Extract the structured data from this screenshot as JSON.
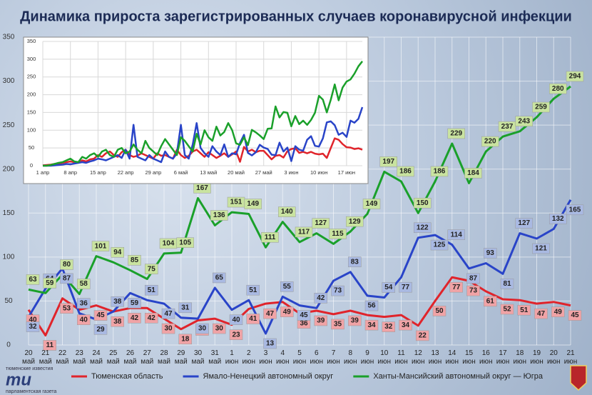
{
  "chart_data": [
    {
      "type": "line",
      "title": "Динамика прироста зарегистрированных случаев коронавирусной инфекции",
      "categories": [
        "20 май",
        "21 май",
        "22 май",
        "23 май",
        "24 май",
        "25 май",
        "26 май",
        "27 май",
        "28 май",
        "29 май",
        "30 май",
        "31 май",
        "1 июн",
        "2 июн",
        "3 июн",
        "4 июн",
        "5 июн",
        "6 июн",
        "7 июн",
        "8 июн",
        "9 июн",
        "10 июн",
        "11 июн",
        "12 июн",
        "13 июн",
        "14 июн",
        "15 июн",
        "16 июн",
        "17 июн",
        "18 июн",
        "19 июн",
        "20 июн",
        "21 июн"
      ],
      "series": [
        {
          "name": "Тюменская область",
          "color": "#e0242b",
          "label_color": "#f0a3a6",
          "values": [
            40,
            11,
            53,
            40,
            45,
            38,
            42,
            42,
            30,
            18,
            28,
            30,
            23,
            41,
            47,
            49,
            36,
            39,
            35,
            39,
            34,
            32,
            34,
            22,
            50,
            77,
            73,
            61,
            52,
            51,
            47,
            49,
            45
          ]
        },
        {
          "name": "Ямало-Ненецкий автономный округ",
          "color": "#2944c8",
          "label_color": "#a9b9e2",
          "values": [
            32,
            64,
            87,
            36,
            29,
            38,
            59,
            51,
            47,
            31,
            30,
            65,
            40,
            51,
            13,
            55,
            45,
            42,
            73,
            83,
            56,
            54,
            77,
            122,
            125,
            114,
            87,
            93,
            81,
            127,
            121,
            132,
            165
          ]
        },
        {
          "name": "Ханты-Мансийский автономный округ — Югра",
          "color": "#1aa02a",
          "label_color": "#c9e3a0",
          "values": [
            63,
            59,
            80,
            58,
            101,
            94,
            85,
            75,
            104,
            105,
            167,
            136,
            151,
            149,
            111,
            140,
            117,
            127,
            115,
            129,
            149,
            197,
            186,
            150,
            186,
            229,
            184,
            220,
            237,
            243,
            259,
            280,
            294
          ]
        }
      ],
      "ylim": [
        0,
        350
      ],
      "yticks": [
        0,
        50,
        100,
        150,
        200,
        250,
        300,
        350
      ],
      "grid": true,
      "legend": "bottom",
      "data_labels": true,
      "logo": {
        "top": "тюменские известия",
        "mark": "ти",
        "bottom": "парламентская газета"
      }
    },
    {
      "type": "line",
      "categories": [
        "1 апр",
        null,
        null,
        null,
        null,
        null,
        null,
        "8 апр",
        null,
        null,
        null,
        null,
        null,
        null,
        "15 апр",
        null,
        null,
        null,
        null,
        null,
        null,
        "22 апр",
        null,
        null,
        null,
        null,
        null,
        null,
        "29 апр",
        null,
        null,
        null,
        null,
        null,
        null,
        "6 май",
        null,
        null,
        null,
        null,
        null,
        null,
        "13 май",
        null,
        null,
        null,
        null,
        null,
        null,
        "20 май",
        null,
        null,
        null,
        null,
        null,
        null,
        "27 май",
        null,
        null,
        null,
        null,
        null,
        null,
        "3 июн",
        null,
        null,
        null,
        null,
        null,
        null,
        "10 июн",
        null,
        null,
        null,
        null,
        null,
        null,
        "17 июн",
        null,
        null,
        null,
        null
      ],
      "series": [
        {
          "name": "Тюменская область",
          "color": "#e0242b",
          "values": [
            1,
            2,
            3,
            5,
            6,
            8,
            10,
            12,
            10,
            8,
            15,
            12,
            18,
            20,
            30,
            25,
            35,
            40,
            30,
            25,
            38,
            45,
            30,
            25,
            28,
            35,
            30,
            25,
            20,
            35,
            28,
            30,
            25,
            20,
            45,
            30,
            22,
            28,
            40,
            45,
            35,
            25,
            38,
            30,
            22,
            28,
            35,
            25,
            32,
            40,
            11,
            53,
            40,
            45,
            38,
            42,
            42,
            30,
            18,
            28,
            30,
            23,
            41,
            47,
            49,
            36,
            39,
            35,
            39,
            34,
            32,
            34,
            22,
            50,
            77,
            73,
            61,
            52,
            51,
            47,
            49,
            45
          ]
        },
        {
          "name": "Ямало-Ненецкий автономный округ",
          "color": "#2944c8",
          "values": [
            0,
            0,
            0,
            1,
            2,
            3,
            5,
            4,
            6,
            8,
            10,
            8,
            12,
            15,
            20,
            18,
            15,
            20,
            25,
            30,
            22,
            45,
            20,
            115,
            25,
            20,
            15,
            30,
            20,
            15,
            10,
            40,
            25,
            20,
            35,
            115,
            30,
            20,
            60,
            120,
            50,
            35,
            25,
            55,
            40,
            30,
            60,
            25,
            35,
            32,
            64,
            87,
            36,
            29,
            38,
            59,
            51,
            47,
            31,
            30,
            65,
            40,
            51,
            13,
            55,
            45,
            42,
            73,
            83,
            56,
            54,
            77,
            122,
            125,
            114,
            87,
            93,
            81,
            127,
            121,
            132,
            165
          ]
        },
        {
          "name": "Ханты-Мансийский автономный округ — Югра",
          "color": "#1aa02a",
          "values": [
            0,
            0,
            2,
            5,
            8,
            10,
            15,
            20,
            12,
            10,
            25,
            20,
            30,
            35,
            25,
            40,
            45,
            30,
            25,
            45,
            50,
            35,
            40,
            60,
            45,
            35,
            70,
            50,
            40,
            30,
            55,
            75,
            60,
            45,
            30,
            80,
            70,
            55,
            40,
            90,
            60,
            100,
            80,
            70,
            110,
            85,
            95,
            120,
            100,
            63,
            59,
            80,
            58,
            101,
            94,
            85,
            75,
            104,
            105,
            167,
            136,
            151,
            149,
            111,
            140,
            117,
            127,
            115,
            129,
            149,
            197,
            186,
            150,
            186,
            229,
            184,
            220,
            237,
            243,
            259,
            280,
            294
          ]
        }
      ],
      "ylim": [
        0,
        350
      ],
      "yticks": [
        0,
        50,
        100,
        150,
        200,
        250,
        300,
        350
      ],
      "grid": true
    }
  ]
}
